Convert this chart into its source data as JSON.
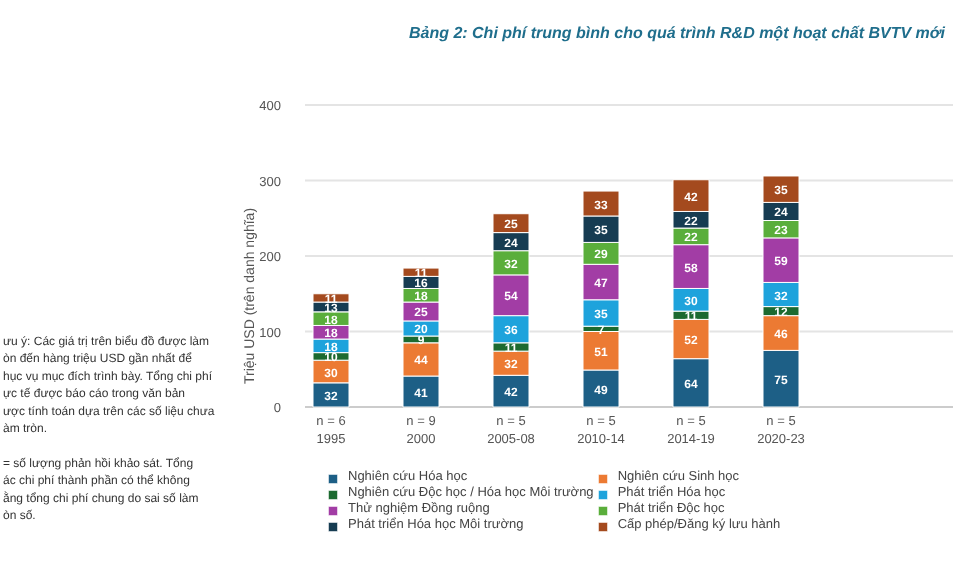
{
  "chart_data": {
    "type": "bar",
    "stacked": true,
    "title": "Bảng 2: Chi phí trung bình cho quá trình R&D một hoạt chất BVTV mới",
    "ylabel": "Triệu USD (trên danh nghĩa)",
    "categories": [
      "n = 6\n1995",
      "n = 9\n2000",
      "n = 5\n2005-08",
      "n = 5\n2010-14",
      "n = 5\n2014-19",
      "n = 5\n2020-23"
    ],
    "series": [
      {
        "name": "Nghiên cứu Hóa học",
        "color": "#1d5f86",
        "values": [
          32,
          41,
          42,
          49,
          64,
          75
        ]
      },
      {
        "name": "Nghiên cứu Sinh học",
        "color": "#ec7a33",
        "values": [
          30,
          44,
          32,
          51,
          52,
          46
        ]
      },
      {
        "name": "Nghiên cứu Độc học / Hóa học Môi trường",
        "color": "#1c6a30",
        "values": [
          10,
          9,
          11,
          7,
          11,
          12
        ]
      },
      {
        "name": "Phát triển Hóa học",
        "color": "#1ea3dc",
        "values": [
          18,
          20,
          36,
          35,
          30,
          32
        ]
      },
      {
        "name": "Thử nghiệm Đồng ruộng",
        "color": "#a23da5",
        "values": [
          18,
          25,
          54,
          47,
          58,
          59
        ]
      },
      {
        "name": "Phát triển Độc học",
        "color": "#5aae3b",
        "values": [
          18,
          18,
          32,
          29,
          22,
          23
        ]
      },
      {
        "name": "Phát triển Hóa học Môi trường",
        "color": "#163c52",
        "values": [
          13,
          16,
          24,
          35,
          22,
          24
        ]
      },
      {
        "name": "Cấp phép/Đăng ký lưu hành",
        "color": "#a44a1e",
        "values": [
          11,
          11,
          25,
          33,
          42,
          35
        ]
      }
    ],
    "ylim": [
      0,
      400
    ],
    "yticks": [
      0,
      100,
      200,
      300,
      400
    ],
    "grid": "y",
    "legend": "bottom",
    "data_labels": true,
    "annotations": [
      "ưu ý: Các giá trị trên biểu đồ được làm\nòn đến hàng triệu USD gần nhất để\nhục vụ mục đích trình bày. Tổng chi phí\nực tế được báo cáo trong văn bản\nược tính toán dựa trên các số liệu chưa\nàm tròn.",
      "= số lượng phản hồi khảo sát. Tổng\nác chi phí thành phần có thể không\nằng tổng chi phí chung do sai số làm\nòn số."
    ]
  }
}
